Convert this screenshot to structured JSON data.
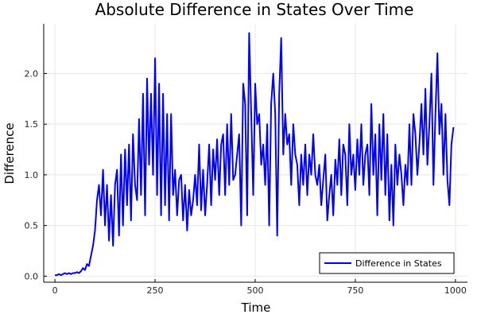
{
  "chart_data": {
    "type": "line",
    "title": "Absolute Difference in States Over Time",
    "xlabel": "Time",
    "ylabel": "Difference",
    "xlim": [
      -28,
      1030
    ],
    "ylim": [
      -0.06,
      2.49
    ],
    "xticks": [
      0,
      250,
      500,
      750,
      1000
    ],
    "xtick_labels": [
      "0",
      "250",
      "500",
      "750",
      "1000"
    ],
    "yticks": [
      0,
      0.5,
      1,
      1.5,
      2
    ],
    "ytick_labels": [
      "0.0",
      "0.5",
      "1.0",
      "1.5",
      "2.0"
    ],
    "grid": true,
    "legend": {
      "position": "bottom-right",
      "entries": [
        "Difference in States"
      ]
    },
    "series": [
      {
        "name": "Difference in States",
        "color": "#0000ff",
        "x_start": 0,
        "x_step": 5,
        "values": [
          0.01,
          0.01,
          0.02,
          0.01,
          0.02,
          0.03,
          0.02,
          0.03,
          0.02,
          0.03,
          0.03,
          0.04,
          0.03,
          0.05,
          0.08,
          0.06,
          0.12,
          0.1,
          0.2,
          0.3,
          0.45,
          0.75,
          0.9,
          0.6,
          1.05,
          0.5,
          0.9,
          0.35,
          0.8,
          0.3,
          0.9,
          1.05,
          0.4,
          1.2,
          0.5,
          1.25,
          0.7,
          1.3,
          0.55,
          1.4,
          0.9,
          0.75,
          1.55,
          0.8,
          1.8,
          0.6,
          1.95,
          1.1,
          1.8,
          1.0,
          2.15,
          0.8,
          1.9,
          0.6,
          1.8,
          0.7,
          1.6,
          0.55,
          1.6,
          0.8,
          1.05,
          0.6,
          0.95,
          1.0,
          0.55,
          0.9,
          0.45,
          0.85,
          0.6,
          0.75,
          1.0,
          0.7,
          1.3,
          0.65,
          1.05,
          0.6,
          0.9,
          1.3,
          0.7,
          1.25,
          0.95,
          1.35,
          0.8,
          1.3,
          1.4,
          0.8,
          1.5,
          0.9,
          1.6,
          0.95,
          1.0,
          1.2,
          1.4,
          0.5,
          1.9,
          1.7,
          0.6,
          2.4,
          1.6,
          0.8,
          1.9,
          1.5,
          1.6,
          1.1,
          1.3,
          0.9,
          1.5,
          0.5,
          1.7,
          2.0,
          1.6,
          0.4,
          1.8,
          2.35,
          1.2,
          1.6,
          1.3,
          1.4,
          0.9,
          1.5,
          1.2,
          1.1,
          0.7,
          1.2,
          0.9,
          1.3,
          0.8,
          1.2,
          1.0,
          1.4,
          1.0,
          0.9,
          1.1,
          0.7,
          0.95,
          1.2,
          0.55,
          0.8,
          1.0,
          0.6,
          1.15,
          0.9,
          1.35,
          0.8,
          1.3,
          1.2,
          0.7,
          1.5,
          1.0,
          1.2,
          0.85,
          1.35,
          1.0,
          1.5,
          0.9,
          1.2,
          1.3,
          0.8,
          1.7,
          1.0,
          1.4,
          0.6,
          1.5,
          0.95,
          1.6,
          0.8,
          1.4,
          0.55,
          1.1,
          0.5,
          1.3,
          0.9,
          1.2,
          1.0,
          0.7,
          1.1,
          0.9,
          1.5,
          0.9,
          1.6,
          1.4,
          1.0,
          1.3,
          1.7,
          1.2,
          1.85,
          1.1,
          1.5,
          2.0,
          0.9,
          1.6,
          2.2,
          1.4,
          1.7,
          1.0,
          1.6,
          0.95,
          0.7,
          1.3,
          1.47
        ]
      }
    ]
  }
}
